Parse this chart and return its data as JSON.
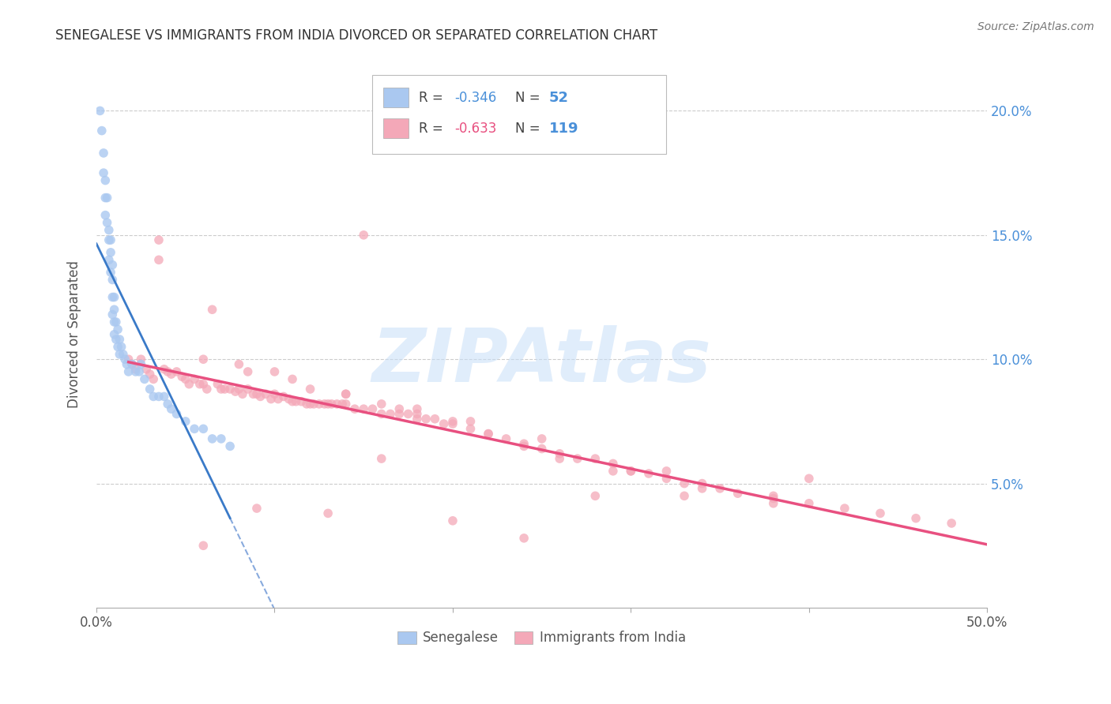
{
  "title": "SENEGALESE VS IMMIGRANTS FROM INDIA DIVORCED OR SEPARATED CORRELATION CHART",
  "source": "Source: ZipAtlas.com",
  "ylabel": "Divorced or Separated",
  "xlim": [
    0.0,
    0.5
  ],
  "ylim": [
    0.0,
    0.22
  ],
  "xtick_positions": [
    0.0,
    0.1,
    0.2,
    0.3,
    0.4,
    0.5
  ],
  "xtick_labels_show": [
    "0.0%",
    "",
    "",
    "",
    "",
    "50.0%"
  ],
  "yticks": [
    0.05,
    0.1,
    0.15,
    0.2
  ],
  "yticklabels": [
    "5.0%",
    "10.0%",
    "15.0%",
    "20.0%"
  ],
  "color_blue": "#aac8f0",
  "color_pink": "#f4a8b8",
  "line_blue": "#3a7ac8",
  "line_pink": "#e85080",
  "line_dashed": "#88aadd",
  "R_blue": -0.346,
  "N_blue": 52,
  "R_pink": -0.633,
  "N_pink": 119,
  "legend_blue_label": "Senegalese",
  "legend_pink_label": "Immigrants from India",
  "watermark": "ZIPAtlas",
  "blue_scatter_x": [
    0.002,
    0.003,
    0.004,
    0.004,
    0.005,
    0.005,
    0.005,
    0.006,
    0.006,
    0.007,
    0.007,
    0.007,
    0.008,
    0.008,
    0.008,
    0.009,
    0.009,
    0.009,
    0.009,
    0.01,
    0.01,
    0.01,
    0.01,
    0.011,
    0.011,
    0.012,
    0.012,
    0.013,
    0.013,
    0.014,
    0.015,
    0.016,
    0.017,
    0.018,
    0.02,
    0.022,
    0.024,
    0.025,
    0.027,
    0.03,
    0.032,
    0.035,
    0.038,
    0.04,
    0.042,
    0.045,
    0.05,
    0.055,
    0.06,
    0.065,
    0.07,
    0.075
  ],
  "blue_scatter_y": [
    0.2,
    0.192,
    0.183,
    0.175,
    0.172,
    0.165,
    0.158,
    0.165,
    0.155,
    0.152,
    0.148,
    0.14,
    0.148,
    0.143,
    0.135,
    0.138,
    0.132,
    0.125,
    0.118,
    0.125,
    0.12,
    0.115,
    0.11,
    0.115,
    0.108,
    0.112,
    0.105,
    0.108,
    0.102,
    0.105,
    0.102,
    0.1,
    0.098,
    0.095,
    0.098,
    0.095,
    0.095,
    0.098,
    0.092,
    0.088,
    0.085,
    0.085,
    0.085,
    0.082,
    0.08,
    0.078,
    0.075,
    0.072,
    0.072,
    0.068,
    0.068,
    0.065
  ],
  "pink_scatter_x": [
    0.018,
    0.02,
    0.022,
    0.025,
    0.028,
    0.03,
    0.032,
    0.035,
    0.038,
    0.04,
    0.042,
    0.045,
    0.048,
    0.05,
    0.052,
    0.055,
    0.058,
    0.06,
    0.062,
    0.065,
    0.068,
    0.07,
    0.072,
    0.075,
    0.078,
    0.08,
    0.082,
    0.085,
    0.088,
    0.09,
    0.092,
    0.095,
    0.098,
    0.1,
    0.102,
    0.105,
    0.108,
    0.11,
    0.112,
    0.115,
    0.118,
    0.12,
    0.122,
    0.125,
    0.128,
    0.13,
    0.132,
    0.135,
    0.138,
    0.14,
    0.145,
    0.15,
    0.155,
    0.16,
    0.165,
    0.17,
    0.175,
    0.18,
    0.185,
    0.19,
    0.195,
    0.2,
    0.21,
    0.22,
    0.23,
    0.24,
    0.25,
    0.26,
    0.27,
    0.28,
    0.29,
    0.3,
    0.31,
    0.32,
    0.33,
    0.34,
    0.35,
    0.36,
    0.38,
    0.4,
    0.42,
    0.44,
    0.46,
    0.48,
    0.035,
    0.06,
    0.085,
    0.11,
    0.14,
    0.16,
    0.18,
    0.2,
    0.22,
    0.26,
    0.3,
    0.34,
    0.38,
    0.15,
    0.28,
    0.4,
    0.08,
    0.12,
    0.18,
    0.25,
    0.32,
    0.38,
    0.1,
    0.14,
    0.17,
    0.21,
    0.24,
    0.29,
    0.33,
    0.06,
    0.09,
    0.13,
    0.16,
    0.2,
    0.24
  ],
  "pink_scatter_y": [
    0.1,
    0.098,
    0.096,
    0.1,
    0.096,
    0.094,
    0.092,
    0.14,
    0.096,
    0.095,
    0.094,
    0.095,
    0.093,
    0.092,
    0.09,
    0.092,
    0.09,
    0.09,
    0.088,
    0.12,
    0.09,
    0.088,
    0.088,
    0.088,
    0.087,
    0.088,
    0.086,
    0.088,
    0.086,
    0.086,
    0.085,
    0.086,
    0.084,
    0.086,
    0.084,
    0.085,
    0.084,
    0.083,
    0.083,
    0.083,
    0.082,
    0.082,
    0.082,
    0.082,
    0.082,
    0.082,
    0.082,
    0.082,
    0.082,
    0.082,
    0.08,
    0.08,
    0.08,
    0.078,
    0.078,
    0.078,
    0.078,
    0.076,
    0.076,
    0.076,
    0.074,
    0.074,
    0.072,
    0.07,
    0.068,
    0.066,
    0.064,
    0.062,
    0.06,
    0.06,
    0.058,
    0.055,
    0.054,
    0.052,
    0.05,
    0.048,
    0.048,
    0.046,
    0.044,
    0.042,
    0.04,
    0.038,
    0.036,
    0.034,
    0.148,
    0.1,
    0.095,
    0.092,
    0.086,
    0.082,
    0.078,
    0.075,
    0.07,
    0.06,
    0.055,
    0.05,
    0.045,
    0.15,
    0.045,
    0.052,
    0.098,
    0.088,
    0.08,
    0.068,
    0.055,
    0.042,
    0.095,
    0.086,
    0.08,
    0.075,
    0.065,
    0.055,
    0.045,
    0.025,
    0.04,
    0.038,
    0.06,
    0.035,
    0.028
  ]
}
